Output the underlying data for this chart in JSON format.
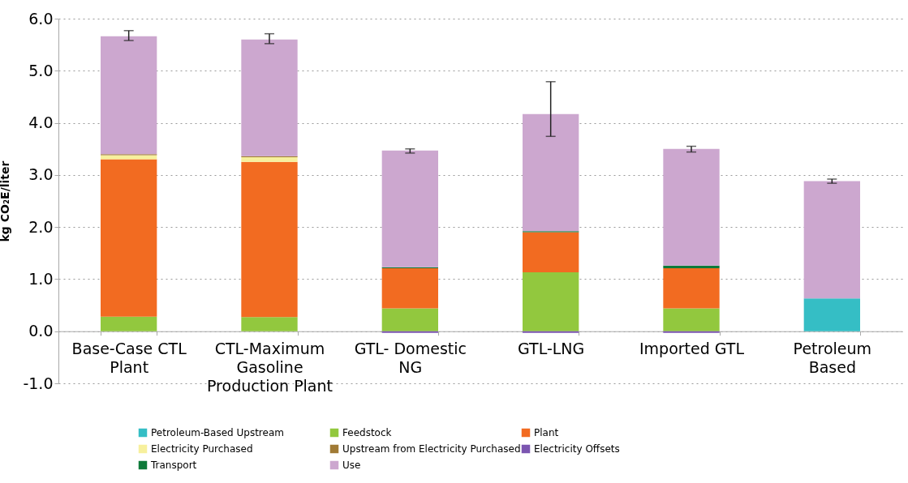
{
  "chart_data": {
    "type": "bar",
    "stacked": true,
    "ylabel": "kg CO₂E/liter",
    "categories": [
      "Base-Case CTL Plant",
      "CTL-Maximum Gasoline Production Plant",
      "GTL- Domestic NG",
      "GTL-LNG",
      "Imported GTL",
      "Petroleum Based"
    ],
    "series": [
      {
        "name": "Petroleum-Based Upstream",
        "color": "#35bec5",
        "values": [
          null,
          null,
          null,
          null,
          null,
          0.63
        ]
      },
      {
        "name": "Feedstock",
        "color": "#92c83e",
        "values": [
          0.28,
          0.27,
          0.44,
          1.13,
          0.44,
          null
        ]
      },
      {
        "name": "Plant",
        "color": "#f26b21",
        "values": [
          3.02,
          2.98,
          0.77,
          0.77,
          0.77,
          null
        ]
      },
      {
        "name": "Electricity Purchased",
        "color": "#f7f09d",
        "values": [
          0.08,
          0.09,
          null,
          null,
          null,
          null
        ]
      },
      {
        "name": "Upstream from Electricity Purchased",
        "color": "#a07a35",
        "values": [
          0.02,
          0.02,
          null,
          null,
          null,
          null
        ]
      },
      {
        "name": "Electricity Offsets",
        "color": "#7b55b0",
        "values": [
          null,
          null,
          -0.03,
          -0.03,
          -0.03,
          null
        ]
      },
      {
        "name": "Transport",
        "color": "#0e7a3a",
        "values": [
          null,
          null,
          0.02,
          0.02,
          0.05,
          null
        ]
      },
      {
        "name": "Use",
        "color": "#cca7cf",
        "values": [
          2.26,
          2.24,
          2.24,
          2.25,
          2.24,
          2.25
        ],
        "errors": [
          [
            5.58,
            5.77
          ],
          [
            5.52,
            5.71
          ],
          [
            3.42,
            3.5
          ],
          [
            3.74,
            4.79
          ],
          [
            3.44,
            3.55
          ],
          [
            2.84,
            2.92
          ]
        ]
      }
    ],
    "ylim": [
      -1,
      6
    ],
    "yticks": [
      {
        "value": -1,
        "label": "-1.0"
      },
      {
        "value": 0,
        "label": "0.0"
      },
      {
        "value": 1,
        "label": "1.0"
      },
      {
        "value": 2,
        "label": "2.0"
      },
      {
        "value": 3,
        "label": "3.0"
      },
      {
        "value": 4,
        "label": "4.0"
      },
      {
        "value": 5,
        "label": "5.0"
      },
      {
        "value": 6,
        "label": "6.0"
      }
    ],
    "grid": "y",
    "legend": "bottom"
  }
}
